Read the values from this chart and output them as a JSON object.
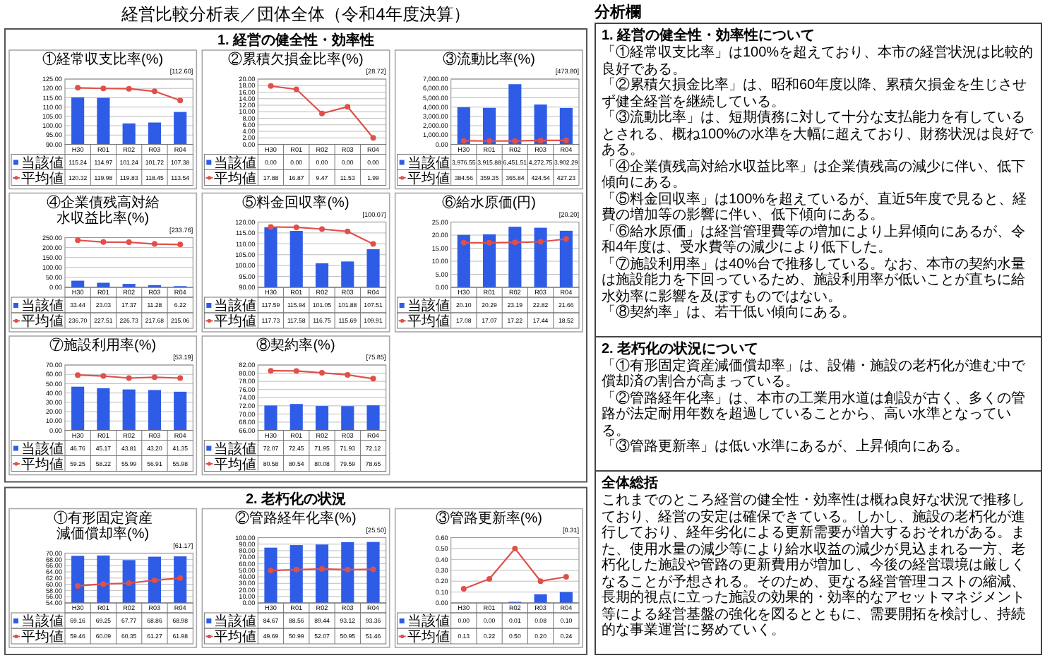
{
  "chart_data": [
    {
      "type": "other",
      "title": "経営比較分析表／団体全体（令和4年度決算）"
    },
    {
      "type": "other",
      "title": "1. 経営の健全性・効率性"
    },
    {
      "type": "bar",
      "title": "①経常収支比率(%)",
      "annotations": [
        "[112.60]"
      ],
      "categories": [
        "H30",
        "R01",
        "R02",
        "R03",
        "R04"
      ],
      "series": [
        {
          "name": "当該値",
          "color": "#2e5ce6",
          "values": [
            115.24,
            114.97,
            101.24,
            101.72,
            107.38
          ],
          "value_labels": [
            "115.24",
            "114.97",
            "101.24",
            "101.72",
            "107.38"
          ]
        },
        {
          "name": "平均値",
          "type": "line",
          "color": "#e0504a",
          "values": [
            120.32,
            119.98,
            119.83,
            118.45,
            113.54
          ],
          "value_labels": [
            "120.32",
            "119.98",
            "119.83",
            "118.45",
            "113.54"
          ]
        }
      ],
      "ylim": [
        90,
        125
      ],
      "yticks": [
        {
          "value": 90,
          "label": "90.00"
        },
        {
          "value": 95,
          "label": "95.00"
        },
        {
          "value": 100,
          "label": "100.00"
        },
        {
          "value": 105,
          "label": "105.00"
        },
        {
          "value": 110,
          "label": "110.00"
        },
        {
          "value": 115,
          "label": "115.00"
        },
        {
          "value": 120,
          "label": "120.00"
        },
        {
          "value": 125,
          "label": "125.00"
        }
      ],
      "grid": "y",
      "legend": "bottom",
      "marker": "circle"
    },
    {
      "type": "bar",
      "title": "②累積欠損金比率(%)",
      "annotations": [
        "[28.72]"
      ],
      "categories": [
        "H30",
        "R01",
        "R02",
        "R03",
        "R04"
      ],
      "series": [
        {
          "name": "当該値",
          "color": "#2e5ce6",
          "values": [
            0,
            0,
            0,
            0,
            0
          ],
          "value_labels": [
            "0.00",
            "0.00",
            "0.00",
            "0.00",
            "0.00"
          ]
        },
        {
          "name": "平均値",
          "type": "line",
          "color": "#e0504a",
          "values": [
            17.88,
            16.87,
            9.47,
            11.53,
            1.99
          ],
          "value_labels": [
            "17.88",
            "16.87",
            "9.47",
            "11.53",
            "1.99"
          ]
        }
      ],
      "ylim": [
        0,
        20
      ],
      "yticks": [
        {
          "value": 0,
          "label": "0.00"
        },
        {
          "value": 2,
          "label": "2.00"
        },
        {
          "value": 4,
          "label": "4.00"
        },
        {
          "value": 6,
          "label": "6.00"
        },
        {
          "value": 8,
          "label": "8.00"
        },
        {
          "value": 10,
          "label": "10.00"
        },
        {
          "value": 12,
          "label": "12.00"
        },
        {
          "value": 14,
          "label": "14.00"
        },
        {
          "value": 16,
          "label": "16.00"
        },
        {
          "value": 18,
          "label": "18.00"
        },
        {
          "value": 20,
          "label": "20.00"
        }
      ],
      "grid": "y",
      "legend": "bottom",
      "marker": "circle"
    },
    {
      "type": "bar",
      "title": "③流動比率(%)",
      "annotations": [
        "[473.80]"
      ],
      "categories": [
        "H30",
        "R01",
        "R02",
        "R03",
        "R04"
      ],
      "series": [
        {
          "name": "当該値",
          "color": "#2e5ce6",
          "values": [
            3976.55,
            3915.88,
            6451.51,
            4272.75,
            3902.29
          ],
          "value_labels": [
            "3,976.55",
            "3,915.88",
            "6,451.51",
            "4,272.75",
            "3,902.29"
          ]
        },
        {
          "name": "平均値",
          "type": "line",
          "color": "#e0504a",
          "values": [
            384.56,
            359.35,
            365.84,
            424.54,
            427.23
          ],
          "value_labels": [
            "384.56",
            "359.35",
            "365.84",
            "424.54",
            "427.23"
          ]
        }
      ],
      "ylim": [
        0,
        7000
      ],
      "yticks": [
        {
          "value": 0,
          "label": "0.00"
        },
        {
          "value": 1000,
          "label": "1,000.00"
        },
        {
          "value": 2000,
          "label": "2,000.00"
        },
        {
          "value": 3000,
          "label": "3,000.00"
        },
        {
          "value": 4000,
          "label": "4,000.00"
        },
        {
          "value": 5000,
          "label": "5,000.00"
        },
        {
          "value": 6000,
          "label": "6,000.00"
        },
        {
          "value": 7000,
          "label": "7,000.00"
        }
      ],
      "grid": "y",
      "legend": "bottom",
      "marker": "circle"
    },
    {
      "type": "bar",
      "title": "④企業債残高対給水収益比率(%)",
      "annotations": [
        "[233.76]"
      ],
      "categories": [
        "H30",
        "R01",
        "R02",
        "R03",
        "R04"
      ],
      "series": [
        {
          "name": "当該値",
          "color": "#2e5ce6",
          "values": [
            33.44,
            23.03,
            17.37,
            11.28,
            6.22
          ],
          "value_labels": [
            "33.44",
            "23.03",
            "17.37",
            "11.28",
            "6.22"
          ]
        },
        {
          "name": "平均値",
          "type": "line",
          "color": "#e0504a",
          "values": [
            236.7,
            227.51,
            226.73,
            217.68,
            215.06
          ],
          "value_labels": [
            "236.70",
            "227.51",
            "226.73",
            "217.68",
            "215.06"
          ]
        }
      ],
      "ylim": [
        0,
        250
      ],
      "yticks": [
        {
          "value": 0,
          "label": "0.00"
        },
        {
          "value": 50,
          "label": "50.00"
        },
        {
          "value": 100,
          "label": "100.00"
        },
        {
          "value": 150,
          "label": "150.00"
        },
        {
          "value": 200,
          "label": "200.00"
        },
        {
          "value": 250,
          "label": "250.00"
        }
      ],
      "grid": "y",
      "legend": "bottom",
      "marker": "circle"
    },
    {
      "type": "bar",
      "title": "⑤料金回収率(%)",
      "annotations": [
        "[100.07]"
      ],
      "categories": [
        "H30",
        "R01",
        "R02",
        "R03",
        "R04"
      ],
      "series": [
        {
          "name": "当該値",
          "color": "#2e5ce6",
          "values": [
            117.59,
            115.94,
            101.05,
            101.88,
            107.51
          ],
          "value_labels": [
            "117.59",
            "115.94",
            "101.05",
            "101.88",
            "107.51"
          ]
        },
        {
          "name": "平均値",
          "type": "line",
          "color": "#e0504a",
          "values": [
            117.73,
            117.58,
            116.75,
            115.69,
            109.91
          ],
          "value_labels": [
            "117.73",
            "117.58",
            "116.75",
            "115.69",
            "109.91"
          ]
        }
      ],
      "ylim": [
        90,
        120
      ],
      "yticks": [
        {
          "value": 90,
          "label": "90.00"
        },
        {
          "value": 95,
          "label": "95.00"
        },
        {
          "value": 100,
          "label": "100.00"
        },
        {
          "value": 105,
          "label": "105.00"
        },
        {
          "value": 110,
          "label": "110.00"
        },
        {
          "value": 115,
          "label": "115.00"
        },
        {
          "value": 120,
          "label": "120.00"
        }
      ],
      "grid": "y",
      "legend": "bottom",
      "marker": "circle"
    },
    {
      "type": "bar",
      "title": "⑥給水原価(円)",
      "annotations": [
        "[20.20]"
      ],
      "categories": [
        "H30",
        "R01",
        "R02",
        "R03",
        "R04"
      ],
      "series": [
        {
          "name": "当該値",
          "color": "#2e5ce6",
          "values": [
            20.1,
            20.29,
            23.19,
            22.82,
            21.66
          ],
          "value_labels": [
            "20.10",
            "20.29",
            "23.19",
            "22.82",
            "21.66"
          ]
        },
        {
          "name": "平均値",
          "type": "line",
          "color": "#e0504a",
          "values": [
            17.08,
            17.07,
            17.22,
            17.44,
            18.52
          ],
          "value_labels": [
            "17.08",
            "17.07",
            "17.22",
            "17.44",
            "18.52"
          ]
        }
      ],
      "ylim": [
        0,
        25
      ],
      "yticks": [
        {
          "value": 0,
          "label": "0.00"
        },
        {
          "value": 5,
          "label": "5.00"
        },
        {
          "value": 10,
          "label": "10.00"
        },
        {
          "value": 15,
          "label": "15.00"
        },
        {
          "value": 20,
          "label": "20.00"
        },
        {
          "value": 25,
          "label": "25.00"
        }
      ],
      "grid": "y",
      "legend": "bottom",
      "marker": "circle"
    },
    {
      "type": "bar",
      "title": "⑦施設利用率(%)",
      "annotations": [
        "[53.19]"
      ],
      "categories": [
        "H30",
        "R01",
        "R02",
        "R03",
        "R04"
      ],
      "series": [
        {
          "name": "当該値",
          "color": "#2e5ce6",
          "values": [
            46.76,
            45.17,
            43.81,
            43.2,
            41.35
          ],
          "value_labels": [
            "46.76",
            "45.17",
            "43.81",
            "43.20",
            "41.35"
          ]
        },
        {
          "name": "平均値",
          "type": "line",
          "color": "#e0504a",
          "values": [
            59.25,
            58.22,
            55.99,
            56.91,
            55.98
          ],
          "value_labels": [
            "59.25",
            "58.22",
            "55.99",
            "56.91",
            "55.98"
          ]
        }
      ],
      "ylim": [
        0,
        70
      ],
      "yticks": [
        {
          "value": 0,
          "label": "0.00"
        },
        {
          "value": 10,
          "label": "10.00"
        },
        {
          "value": 20,
          "label": "20.00"
        },
        {
          "value": 30,
          "label": "30.00"
        },
        {
          "value": 40,
          "label": "40.00"
        },
        {
          "value": 50,
          "label": "50.00"
        },
        {
          "value": 60,
          "label": "60.00"
        },
        {
          "value": 70,
          "label": "70.00"
        }
      ],
      "grid": "y",
      "legend": "bottom",
      "marker": "circle"
    },
    {
      "type": "bar",
      "title": "⑧契約率(%)",
      "annotations": [
        "[75.85]"
      ],
      "categories": [
        "H30",
        "R01",
        "R02",
        "R03",
        "R04"
      ],
      "series": [
        {
          "name": "当該値",
          "color": "#2e5ce6",
          "values": [
            72.07,
            72.45,
            71.95,
            71.93,
            72.12
          ],
          "value_labels": [
            "72.07",
            "72.45",
            "71.95",
            "71.93",
            "72.12"
          ]
        },
        {
          "name": "平均値",
          "type": "line",
          "color": "#e0504a",
          "values": [
            80.58,
            80.54,
            80.08,
            79.59,
            78.65
          ],
          "value_labels": [
            "80.58",
            "80.54",
            "80.08",
            "79.59",
            "78.65"
          ]
        }
      ],
      "ylim": [
        66,
        82
      ],
      "yticks": [
        {
          "value": 66,
          "label": "66.00"
        },
        {
          "value": 68,
          "label": "68.00"
        },
        {
          "value": 70,
          "label": "70.00"
        },
        {
          "value": 72,
          "label": "72.00"
        },
        {
          "value": 74,
          "label": "74.00"
        },
        {
          "value": 76,
          "label": "76.00"
        },
        {
          "value": 78,
          "label": "78.00"
        },
        {
          "value": 80,
          "label": "80.00"
        },
        {
          "value": 82,
          "label": "82.00"
        }
      ],
      "grid": "y",
      "legend": "bottom",
      "marker": "circle"
    },
    {
      "type": "other",
      "title": "2. 老朽化の状況"
    },
    {
      "type": "bar",
      "title": "①有形固定資産減価償却率(%)",
      "annotations": [
        "[61.17]"
      ],
      "categories": [
        "H30",
        "R01",
        "R02",
        "R03",
        "R04"
      ],
      "series": [
        {
          "name": "当該値",
          "color": "#2e5ce6",
          "values": [
            69.16,
            69.25,
            67.77,
            68.86,
            68.98
          ],
          "value_labels": [
            "69.16",
            "69.25",
            "67.77",
            "68.86",
            "68.98"
          ]
        },
        {
          "name": "平均値",
          "type": "line",
          "color": "#e0504a",
          "values": [
            59.46,
            60.09,
            60.35,
            61.27,
            61.98
          ],
          "value_labels": [
            "59.46",
            "60.09",
            "60.35",
            "61.27",
            "61.98"
          ]
        }
      ],
      "ylim": [
        54,
        70
      ],
      "yticks": [
        {
          "value": 54,
          "label": "54.00"
        },
        {
          "value": 56,
          "label": "56.00"
        },
        {
          "value": 58,
          "label": "58.00"
        },
        {
          "value": 60,
          "label": "60.00"
        },
        {
          "value": 62,
          "label": "62.00"
        },
        {
          "value": 64,
          "label": "64.00"
        },
        {
          "value": 66,
          "label": "66.00"
        },
        {
          "value": 68,
          "label": "68.00"
        },
        {
          "value": 70,
          "label": "70.00"
        }
      ],
      "grid": "y",
      "legend": "bottom",
      "marker": "circle"
    },
    {
      "type": "bar",
      "title": "②管路経年化率(%)",
      "annotations": [
        "[25.50]"
      ],
      "categories": [
        "H30",
        "R01",
        "R02",
        "R03",
        "R04"
      ],
      "series": [
        {
          "name": "当該値",
          "color": "#2e5ce6",
          "values": [
            84.67,
            88.56,
            89.44,
            93.12,
            93.36
          ],
          "value_labels": [
            "84.67",
            "88.56",
            "89.44",
            "93.12",
            "93.36"
          ]
        },
        {
          "name": "平均値",
          "type": "line",
          "color": "#e0504a",
          "values": [
            49.69,
            50.99,
            52.07,
            50.95,
            51.46
          ],
          "value_labels": [
            "49.69",
            "50.99",
            "52.07",
            "50.95",
            "51.46"
          ]
        }
      ],
      "ylim": [
        0,
        100
      ],
      "yticks": [
        {
          "value": 0,
          "label": "0.00"
        },
        {
          "value": 10,
          "label": "10.00"
        },
        {
          "value": 20,
          "label": "20.00"
        },
        {
          "value": 30,
          "label": "30.00"
        },
        {
          "value": 40,
          "label": "40.00"
        },
        {
          "value": 50,
          "label": "50.00"
        },
        {
          "value": 60,
          "label": "60.00"
        },
        {
          "value": 70,
          "label": "70.00"
        },
        {
          "value": 80,
          "label": "80.00"
        },
        {
          "value": 90,
          "label": "90.00"
        },
        {
          "value": 100,
          "label": "100.00"
        }
      ],
      "grid": "y",
      "legend": "bottom",
      "marker": "circle"
    },
    {
      "type": "bar",
      "title": "③管路更新率(%)",
      "annotations": [
        "[0.31]"
      ],
      "categories": [
        "H30",
        "R01",
        "R02",
        "R03",
        "R04"
      ],
      "series": [
        {
          "name": "当該値",
          "color": "#2e5ce6",
          "values": [
            0,
            0,
            0.01,
            0.08,
            0.1
          ],
          "value_labels": [
            "0.00",
            "0.00",
            "0.01",
            "0.08",
            "0.10"
          ]
        },
        {
          "name": "平均値",
          "type": "line",
          "color": "#e0504a",
          "values": [
            0.13,
            0.22,
            0.5,
            0.2,
            0.24
          ],
          "value_labels": [
            "0.13",
            "0.22",
            "0.50",
            "0.20",
            "0.24"
          ]
        }
      ],
      "ylim": [
        0,
        0.6
      ],
      "yticks": [
        {
          "value": 0,
          "label": "0.00"
        },
        {
          "value": 0.1,
          "label": "0.10"
        },
        {
          "value": 0.2,
          "label": "0.20"
        },
        {
          "value": 0.3,
          "label": "0.30"
        },
        {
          "value": 0.4,
          "label": "0.40"
        },
        {
          "value": 0.5,
          "label": "0.50"
        },
        {
          "value": 0.6,
          "label": "0.60"
        }
      ],
      "grid": "y",
      "legend": "bottom",
      "marker": "circle"
    },
    {
      "type": "other",
      "title": "分析欄",
      "subtitle": "1. 経営の健全性・効率性について",
      "annotations": [
        "「①経常収支比率」は100%を超えており、本市の経営状況は比較的良好である。",
        "「②累積欠損金比率」は、昭和60年度以降、累積欠損金を生じさせず健全経営を継続している。",
        "「③流動比率」は、短期債務に対して十分な支払能力を有しているとされる、概ね100%の水準を大幅に超えており、財務状況は良好である。",
        "「④企業債残高対給水収益比率」は企業債残高の減少に伴い、低下傾向にある。",
        "「⑤料金回収率」は100%を超えているが、直近5年度で見ると、経費の増加等の影響に伴い、低下傾向にある。",
        "「⑥給水原価」は経営管理費等の増加により上昇傾向にあるが、令和4年度は、受水費等の減少により低下した。",
        "「⑦施設利用率」は40%台で推移している。なお、本市の契約水量は施設能力を下回っているため、施設利用率が低いことが直ちに給水効率に影響を及ぼすものではない。",
        "「⑧契約率」は、若干低い傾向にある。"
      ]
    },
    {
      "type": "other",
      "title": "2. 老朽化の状況について",
      "annotations": [
        "「①有形固定資産減価償却率」は、設備・施設の老朽化が進む中で償却済の割合が高まっている。",
        "「②管路経年化率」は、本市の工業用水道は創設が古く、多くの管路が法定耐用年数を超過していることから、高い水準となっている。",
        "「③管路更新率」は低い水準にあるが、上昇傾向にある。"
      ]
    },
    {
      "type": "other",
      "title": "全体総括",
      "annotations": [
        "これまでのところ経営の健全性・効率性は概ね良好な状況で推移しており、経営の安定は確保できている。しかし、施設の老朽化が進行しており、経年劣化による更新需要が増大するおそれがある。また、使用水量の減少等により給水収益の減少が見込まれる一方、老朽化した施設や管路の更新費用が増加し、今後の経営環境は厳しくなることが予想される。そのため、更なる経営管理コストの縮減、長期的視点に立った施設の効果的・効率的なアセットマネジメント等による経営基盤の強化を図るとともに、需要開拓を検討し、持続的な事業運営に努めていく。"
      ]
    }
  ]
}
